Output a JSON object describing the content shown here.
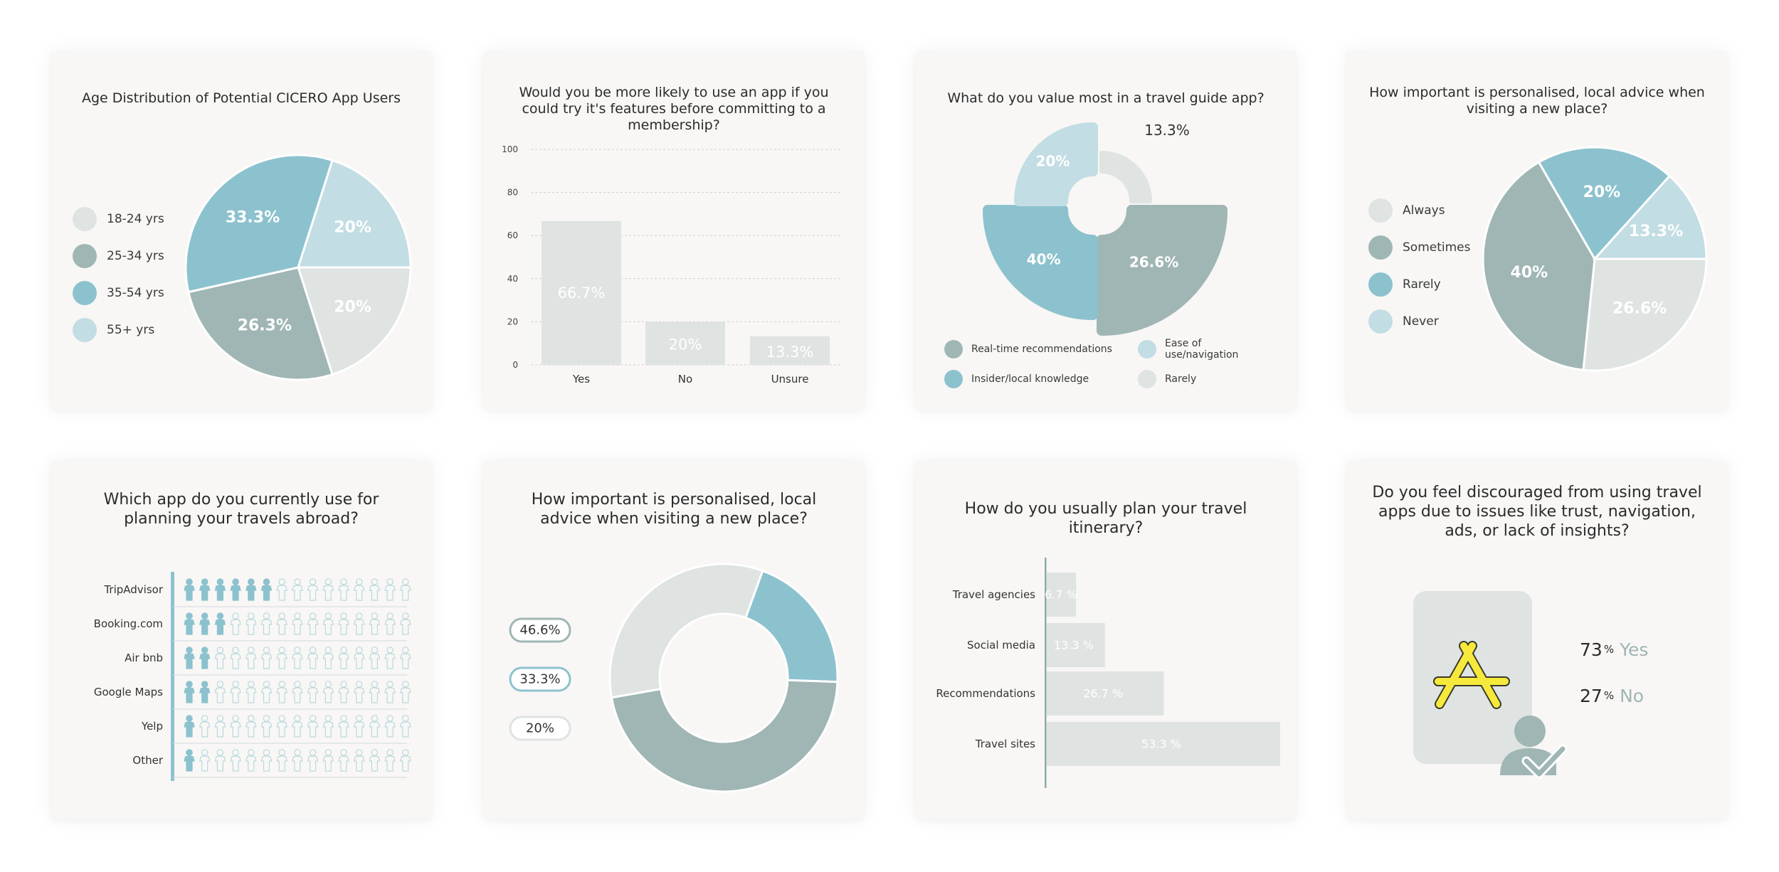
{
  "colors": {
    "light_gray": "#dfe3e2",
    "sage": "#9fb6b4",
    "teal": "#8cc2ce",
    "pale_blue": "#c2dde3",
    "card_bg": "#f8f7f5",
    "yellow": "#f6e93c"
  },
  "chart_data": [
    {
      "type": "pie",
      "title": "Age Distribution of Potential CICERO App Users",
      "legend_placement": "left",
      "slices": [
        {
          "label": "18-24 yrs",
          "value": 20,
          "value_label": "20%",
          "color": "#dfe3e2"
        },
        {
          "label": "25-34 yrs",
          "value": 26.3,
          "value_label": "26.3%",
          "color": "#9fb6b4"
        },
        {
          "label": "35-54 yrs",
          "value": 33.3,
          "value_label": "33.3%",
          "color": "#8cc2ce"
        },
        {
          "label": "55+ yrs",
          "value": 20,
          "value_label": "20%",
          "color": "#c2dde3"
        }
      ]
    },
    {
      "type": "bar",
      "title": "Would you be more likely to use an app if you could try it's features before committing to a membership?",
      "categories": [
        "Yes",
        "No",
        "Unsure"
      ],
      "values": [
        66.7,
        20,
        13.3
      ],
      "value_labels": [
        "66.7%",
        "20%",
        "13.3%"
      ],
      "yticks": [
        0,
        20,
        40,
        60,
        80,
        100
      ],
      "ylim": [
        0,
        100
      ],
      "grid": true,
      "color": "#dfe3e2"
    },
    {
      "type": "pie",
      "title": "What do you value most in a travel guide app?",
      "legend_placement": "bottom",
      "slices": [
        {
          "label": "Real-time recommendations",
          "value": 26.6,
          "value_label": "26.6%",
          "color": "#9fb6b4"
        },
        {
          "label": "Insider/local knowledge",
          "value": 40,
          "value_label": "40%",
          "color": "#8cc2ce"
        },
        {
          "label": "Ease of use/navigation",
          "value": 20,
          "value_label": "20%",
          "color": "#c2dde3"
        },
        {
          "label": "Rarely",
          "value": 13.3,
          "value_label": "13.3%",
          "color": "#dfe3e2"
        }
      ]
    },
    {
      "type": "pie",
      "title": "How important is personalised, local advice when visiting a new place?",
      "legend_placement": "left",
      "slices": [
        {
          "label": "Always",
          "value": 26.6,
          "value_label": "26.6%",
          "color": "#dfe3e2"
        },
        {
          "label": "Sometimes",
          "value": 40,
          "value_label": "40%",
          "color": "#9fb6b4"
        },
        {
          "label": "Rarely",
          "value": 20,
          "value_label": "20%",
          "color": "#8cc2ce"
        },
        {
          "label": "Never",
          "value": 13.3,
          "value_label": "13.3%",
          "color": "#c2dde3"
        }
      ]
    },
    {
      "type": "pictograph",
      "title": "Which app do you currently use for planning your travels abroad?",
      "icons_per_row": 15,
      "categories": [
        "TripAdvisor",
        "Booking.com",
        "Air bnb",
        "Google Maps",
        "Yelp",
        "Other"
      ],
      "values": [
        6,
        3,
        2,
        2,
        1,
        1
      ],
      "color": "#8cc2ce"
    },
    {
      "type": "donut",
      "title": "How important is personalised, local advice when visiting a new place?",
      "values": [
        20,
        46.6,
        33.3
      ],
      "value_labels": [
        "46.6%",
        "33.3%",
        "20%"
      ],
      "slice_colors": [
        "#8cc2ce",
        "#9fb6b4",
        "#dfe3e2"
      ],
      "label_colors": [
        "#9fb6b4",
        "#8cc2ce",
        "#dfe3e2"
      ]
    },
    {
      "type": "bar",
      "orientation": "horizontal",
      "title": "How do you usually plan your travel itinerary?",
      "categories": [
        "Travel agencies",
        "Social media",
        "Recommendations",
        "Travel sites"
      ],
      "values": [
        6.7,
        13.3,
        26.7,
        53.3
      ],
      "value_labels": [
        "6.7 %",
        "13.3 %",
        "26.7 %",
        "53.3 %"
      ],
      "color": "#dfe3e2"
    },
    {
      "type": "stat",
      "title": "Do you feel discouraged from using travel apps due to issues like trust, navigation, ads, or lack of insights?",
      "items": [
        {
          "number": "73",
          "unit": "%",
          "label": "Yes",
          "value": 73
        },
        {
          "number": "27",
          "unit": "%",
          "label": "No",
          "value": 27
        }
      ]
    }
  ]
}
